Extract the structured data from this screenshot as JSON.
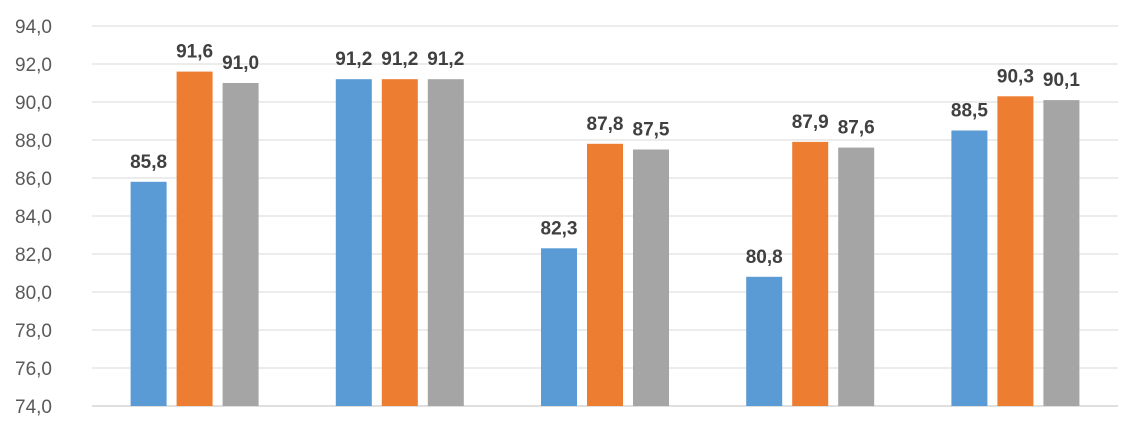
{
  "chart_data": {
    "type": "bar",
    "title": "",
    "xlabel": "",
    "ylabel": "",
    "ylim": [
      74,
      94
    ],
    "y_ticks": [
      "74,0",
      "76,0",
      "78,0",
      "80,0",
      "82,0",
      "84,0",
      "86,0",
      "88,0",
      "90,0",
      "92,0",
      "94,0"
    ],
    "grid": true,
    "legend": "none",
    "categories": [
      "",
      "",
      "",
      "",
      ""
    ],
    "series": [
      {
        "values": [
          85.8,
          91.2,
          82.3,
          80.8,
          88.5
        ],
        "labels": [
          "85,8",
          "91,2",
          "82,3",
          "80,8",
          "88,5"
        ],
        "color": "#5B9BD5"
      },
      {
        "values": [
          91.6,
          91.2,
          87.8,
          87.9,
          90.3
        ],
        "labels": [
          "91,6",
          "91,2",
          "87,8",
          "87,9",
          "90,3"
        ],
        "color": "#ED7D31"
      },
      {
        "values": [
          91.0,
          91.2,
          87.5,
          87.6,
          90.1
        ],
        "labels": [
          "91,0",
          "91,2",
          "87,5",
          "87,6",
          "90,1"
        ],
        "color": "#A5A5A5"
      }
    ]
  }
}
